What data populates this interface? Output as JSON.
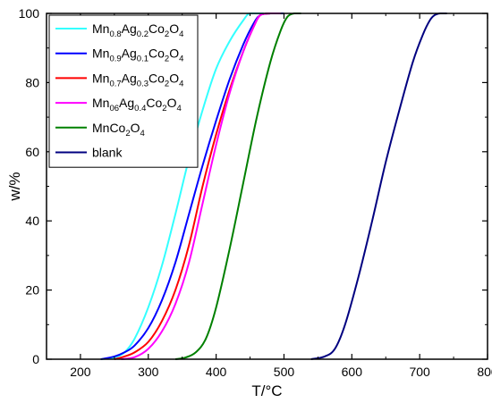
{
  "chart_data": {
    "type": "line",
    "xlabel": "T/°C",
    "ylabel": "w/%",
    "xlim": [
      150,
      800
    ],
    "ylim": [
      0,
      100
    ],
    "xticks": [
      200,
      300,
      400,
      500,
      600,
      700,
      800
    ],
    "yticks": [
      0,
      20,
      40,
      60,
      80,
      100
    ],
    "x_tick_labels": [
      "200",
      "300",
      "400",
      "500",
      "600",
      "700",
      "800"
    ],
    "y_tick_labels": [
      "0",
      "20",
      "40",
      "60",
      "80",
      "100"
    ],
    "grid": false,
    "legend_position": "top-left",
    "series": [
      {
        "name": "Mn0.8Ag0.2Co2O4",
        "label_parts": [
          {
            "t": "Mn"
          },
          {
            "t": "0.8",
            "sub": true
          },
          {
            "t": "Ag"
          },
          {
            "t": "0.2",
            "sub": true
          },
          {
            "t": "Co"
          },
          {
            "t": "2",
            "sub": true
          },
          {
            "t": "O"
          },
          {
            "t": "4",
            "sub": true
          }
        ],
        "color": "#33ffff",
        "points": [
          [
            230,
            0
          ],
          [
            250,
            0.5
          ],
          [
            265,
            2
          ],
          [
            280,
            6
          ],
          [
            300,
            15
          ],
          [
            320,
            27
          ],
          [
            340,
            42
          ],
          [
            360,
            58
          ],
          [
            380,
            72
          ],
          [
            400,
            84
          ],
          [
            420,
            92
          ],
          [
            440,
            98
          ],
          [
            450,
            100
          ],
          [
            470,
            100
          ]
        ]
      },
      {
        "name": "Mn0.9Ag0.1Co2O4",
        "label_parts": [
          {
            "t": "Mn"
          },
          {
            "t": "0.9",
            "sub": true
          },
          {
            "t": "Ag"
          },
          {
            "t": "0.1",
            "sub": true
          },
          {
            "t": "Co"
          },
          {
            "t": "2",
            "sub": true
          },
          {
            "t": "O"
          },
          {
            "t": "4",
            "sub": true
          }
        ],
        "color": "#0000ff",
        "points": [
          [
            230,
            0
          ],
          [
            250,
            0.8
          ],
          [
            265,
            2
          ],
          [
            280,
            4
          ],
          [
            300,
            9
          ],
          [
            320,
            17
          ],
          [
            340,
            28
          ],
          [
            360,
            42
          ],
          [
            380,
            56
          ],
          [
            400,
            69
          ],
          [
            420,
            81
          ],
          [
            440,
            91
          ],
          [
            455,
            97
          ],
          [
            465,
            99.5
          ],
          [
            480,
            100
          ],
          [
            500,
            100
          ]
        ]
      },
      {
        "name": "Mn0.7Ag0.3Co2O4",
        "label_parts": [
          {
            "t": "Mn"
          },
          {
            "t": "0.7",
            "sub": true
          },
          {
            "t": "Ag"
          },
          {
            "t": "0.3",
            "sub": true
          },
          {
            "t": "Co"
          },
          {
            "t": "2",
            "sub": true
          },
          {
            "t": "O"
          },
          {
            "t": "4",
            "sub": true
          }
        ],
        "color": "#ff0000",
        "points": [
          [
            250,
            0
          ],
          [
            265,
            0.8
          ],
          [
            280,
            2
          ],
          [
            300,
            5
          ],
          [
            320,
            11
          ],
          [
            340,
            20
          ],
          [
            360,
            33
          ],
          [
            380,
            50
          ],
          [
            400,
            65
          ],
          [
            420,
            78
          ],
          [
            440,
            89
          ],
          [
            455,
            96
          ],
          [
            465,
            99.5
          ],
          [
            480,
            100
          ],
          [
            495,
            100
          ]
        ]
      },
      {
        "name": "Mn06Ag0.4Co2O4",
        "label_parts": [
          {
            "t": "Mn"
          },
          {
            "t": "06",
            "sub": true
          },
          {
            "t": "Ag"
          },
          {
            "t": "0.4",
            "sub": true
          },
          {
            "t": "Co"
          },
          {
            "t": "2",
            "sub": true
          },
          {
            "t": "O"
          },
          {
            "t": "4",
            "sub": true
          }
        ],
        "color": "#ff00ff",
        "points": [
          [
            260,
            0
          ],
          [
            280,
            0.6
          ],
          [
            300,
            3
          ],
          [
            320,
            8
          ],
          [
            340,
            16
          ],
          [
            360,
            28
          ],
          [
            380,
            45
          ],
          [
            400,
            62
          ],
          [
            420,
            77
          ],
          [
            440,
            89
          ],
          [
            455,
            96
          ],
          [
            465,
            99.5
          ],
          [
            480,
            100
          ],
          [
            495,
            100
          ]
        ]
      },
      {
        "name": "MnCo2O4",
        "label_parts": [
          {
            "t": "MnCo"
          },
          {
            "t": "2",
            "sub": true
          },
          {
            "t": "O"
          },
          {
            "t": "4",
            "sub": true
          }
        ],
        "color": "#008000",
        "points": [
          [
            340,
            0
          ],
          [
            355,
            0.5
          ],
          [
            370,
            2
          ],
          [
            385,
            6
          ],
          [
            400,
            15
          ],
          [
            420,
            32
          ],
          [
            440,
            51
          ],
          [
            460,
            70
          ],
          [
            480,
            86
          ],
          [
            495,
            95
          ],
          [
            505,
            99
          ],
          [
            515,
            100
          ],
          [
            525,
            100
          ]
        ]
      },
      {
        "name": "blank",
        "label_parts": [
          {
            "t": "blank"
          }
        ],
        "color": "#000080",
        "points": [
          [
            540,
            0
          ],
          [
            560,
            0.8
          ],
          [
            575,
            3
          ],
          [
            590,
            10
          ],
          [
            610,
            24
          ],
          [
            630,
            40
          ],
          [
            650,
            57
          ],
          [
            670,
            72
          ],
          [
            690,
            86
          ],
          [
            705,
            94
          ],
          [
            715,
            98
          ],
          [
            722,
            99.5
          ],
          [
            730,
            100
          ],
          [
            740,
            100
          ]
        ]
      }
    ]
  }
}
